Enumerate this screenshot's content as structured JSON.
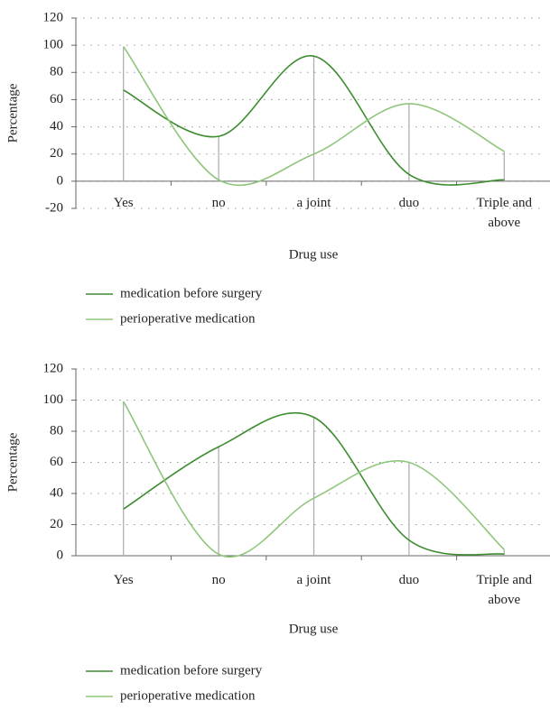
{
  "chart_data": [
    {
      "type": "line",
      "y_label": "Percentage",
      "x_label": "Drug use",
      "categories": [
        "Yes",
        "no",
        "a joint",
        "duo",
        "Triple and above"
      ],
      "series": [
        {
          "name": "medication before surgery",
          "color": "#3d8c30",
          "values": [
            67,
            33,
            92,
            5,
            1
          ]
        },
        {
          "name": "perioperative medication",
          "color": "#8fc67c",
          "values": [
            99,
            1,
            20,
            57,
            22
          ]
        }
      ],
      "ylim": [
        -20,
        120
      ],
      "yticks": [
        -20,
        0,
        20,
        40,
        60,
        80,
        100,
        120
      ],
      "grid": true,
      "legend": "bottom-left"
    },
    {
      "type": "line",
      "y_label": "Percentage",
      "x_label": "Drug use",
      "categories": [
        "Yes",
        "no",
        "a joint",
        "duo",
        "Triple and above"
      ],
      "series": [
        {
          "name": "medication before surgery",
          "color": "#3d8c30",
          "values": [
            30,
            70,
            89,
            10,
            1
          ]
        },
        {
          "name": "perioperative medication",
          "color": "#8fc67c",
          "values": [
            99,
            1,
            37,
            60,
            4
          ]
        }
      ],
      "ylim": [
        0,
        120
      ],
      "yticks": [
        0,
        20,
        40,
        60,
        80,
        100,
        120
      ],
      "grid": true,
      "legend": "bottom-left"
    }
  ]
}
